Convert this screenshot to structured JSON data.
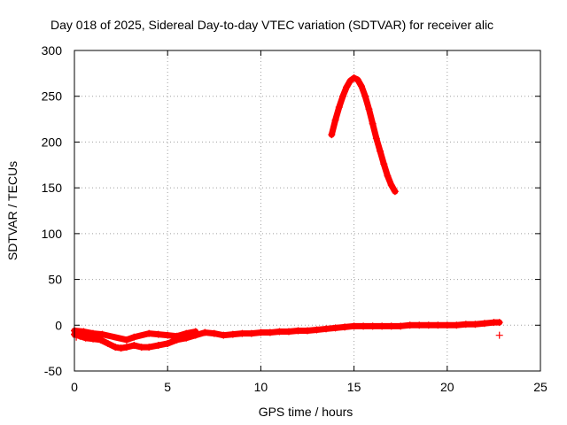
{
  "chart_data": {
    "type": "scatter",
    "title": "Day 018 of 2025, Sidereal Day-to-day VTEC variation (SDTVAR) for receiver alic",
    "xlabel": "GPS time / hours",
    "ylabel": "SDTVAR / TECUs",
    "xlim": [
      0,
      25
    ],
    "ylim": [
      -50,
      300
    ],
    "xticks": [
      0,
      5,
      10,
      15,
      20,
      25
    ],
    "yticks": [
      -50,
      0,
      50,
      100,
      150,
      200,
      250,
      300
    ],
    "grid": true,
    "marker": "+",
    "series": [
      {
        "name": "baseline",
        "color": "#ff0000",
        "x": [
          0,
          0.3,
          0.6,
          1.0,
          1.4,
          1.8,
          2.2,
          2.5,
          2.8,
          3.2,
          3.6,
          4.0,
          4.5,
          5.0,
          5.5,
          6.0,
          6.5,
          7.0,
          7.5,
          8.0,
          8.5,
          9.0,
          9.5,
          10.0,
          10.5,
          11.0,
          11.5,
          12.0,
          12.5,
          13.0,
          13.5,
          14.0,
          14.5,
          15.0,
          15.5,
          16.0,
          16.5,
          17.0,
          17.5,
          18.0,
          18.5,
          19.0,
          19.5,
          20.0,
          20.5,
          21.0,
          21.5,
          22.0,
          22.5,
          22.8
        ],
        "y": [
          -10,
          -12,
          -14,
          -15,
          -16,
          -20,
          -24,
          -25,
          -24,
          -22,
          -24,
          -24,
          -22,
          -20,
          -16,
          -14,
          -11,
          -8,
          -9,
          -11,
          -10,
          -9,
          -9,
          -8,
          -8,
          -7,
          -7,
          -6,
          -6,
          -5,
          -4,
          -3,
          -2,
          -1,
          -1,
          -1,
          -1,
          -1,
          -1,
          0,
          0,
          0,
          0,
          0,
          0,
          1,
          1,
          2,
          3,
          3
        ]
      },
      {
        "name": "baseline-upper-scatter",
        "color": "#ff0000",
        "x": [
          0,
          0.5,
          1.0,
          1.5,
          2.8,
          3.2,
          4.0,
          4.5,
          5.0,
          5.5,
          6.0,
          6.5
        ],
        "y": [
          -6,
          -7,
          -9,
          -10,
          -16,
          -13,
          -9,
          -10,
          -11,
          -12,
          -9,
          -7
        ]
      },
      {
        "name": "arc",
        "color": "#ff0000",
        "x": [
          13.8,
          14.0,
          14.2,
          14.4,
          14.6,
          14.8,
          15.0,
          15.2,
          15.4,
          15.6,
          15.8,
          16.0,
          16.2,
          16.4,
          16.6,
          16.8,
          17.0,
          17.2
        ],
        "y": [
          208,
          224,
          238,
          250,
          260,
          267,
          270,
          268,
          261,
          250,
          236,
          220,
          204,
          190,
          176,
          163,
          153,
          146
        ]
      },
      {
        "name": "outliers",
        "color": "#ff0000",
        "x": [
          0.1,
          22.8
        ],
        "y": [
          -13,
          -11
        ]
      }
    ]
  }
}
